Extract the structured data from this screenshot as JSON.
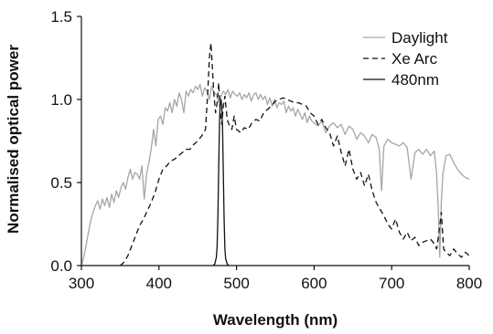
{
  "chart_data": {
    "type": "line",
    "xlabel": "Wavelength (nm)",
    "ylabel": "Normalised optical power",
    "xlim": [
      300,
      800
    ],
    "ylim": [
      0,
      1.5
    ],
    "xticks": [
      "300",
      "400",
      "500",
      "600",
      "700",
      "800"
    ],
    "yticks": [
      "0.0",
      "0.5",
      "1.0",
      "1.5"
    ],
    "grid": false,
    "legend_position": "top-right",
    "series": [
      {
        "name": "Daylight",
        "color": "#a6a6a6",
        "dash": "solid",
        "x": [
          300,
          303,
          306,
          309,
          312,
          315,
          318,
          321,
          324,
          327,
          330,
          333,
          336,
          339,
          342,
          345,
          348,
          351,
          354,
          357,
          360,
          363,
          366,
          369,
          372,
          375,
          378,
          381,
          384,
          387,
          390,
          393,
          396,
          399,
          402,
          405,
          408,
          411,
          414,
          417,
          420,
          423,
          426,
          429,
          432,
          435,
          438,
          441,
          444,
          447,
          450,
          453,
          456,
          459,
          462,
          465,
          468,
          471,
          474,
          477,
          480,
          483,
          486,
          489,
          492,
          495,
          498,
          501,
          504,
          507,
          510,
          513,
          516,
          519,
          522,
          525,
          528,
          531,
          534,
          537,
          540,
          543,
          546,
          549,
          552,
          555,
          558,
          561,
          564,
          567,
          570,
          573,
          576,
          579,
          582,
          585,
          588,
          591,
          594,
          597,
          600,
          605,
          610,
          615,
          620,
          625,
          630,
          635,
          640,
          645,
          650,
          655,
          660,
          665,
          670,
          675,
          680,
          684,
          687,
          690,
          695,
          700,
          705,
          710,
          715,
          720,
          725,
          730,
          735,
          740,
          745,
          750,
          755,
          758,
          760,
          762,
          764,
          766,
          770,
          775,
          780,
          785,
          790,
          795,
          800
        ],
        "values": [
          0.0,
          0.05,
          0.12,
          0.2,
          0.27,
          0.32,
          0.36,
          0.39,
          0.34,
          0.4,
          0.36,
          0.41,
          0.35,
          0.43,
          0.38,
          0.45,
          0.41,
          0.47,
          0.5,
          0.46,
          0.53,
          0.58,
          0.52,
          0.56,
          0.55,
          0.52,
          0.6,
          0.4,
          0.55,
          0.62,
          0.7,
          0.82,
          0.72,
          0.88,
          0.9,
          0.85,
          0.95,
          0.93,
          0.98,
          0.92,
          1.0,
          0.96,
          1.04,
          1.0,
          0.92,
          1.05,
          1.02,
          1.06,
          1.04,
          1.08,
          1.06,
          1.09,
          1.02,
          1.07,
          1.05,
          1.0,
          1.08,
          1.04,
          1.03,
          0.98,
          1.02,
          1.05,
          1.03,
          1.06,
          1.01,
          1.05,
          1.03,
          1.02,
          1.04,
          1.0,
          1.03,
          1.01,
          1.04,
          0.99,
          1.03,
          1.04,
          1.0,
          1.03,
          1.0,
          1.02,
          0.97,
          1.01,
          0.96,
          1.0,
          0.95,
          0.98,
          0.97,
          0.99,
          0.92,
          0.96,
          0.93,
          0.95,
          0.9,
          0.94,
          0.91,
          0.88,
          0.92,
          0.86,
          0.9,
          0.87,
          0.86,
          0.84,
          0.87,
          0.8,
          0.84,
          0.86,
          0.83,
          0.85,
          0.79,
          0.84,
          0.82,
          0.76,
          0.8,
          0.78,
          0.74,
          0.79,
          0.77,
          0.7,
          0.45,
          0.72,
          0.76,
          0.74,
          0.73,
          0.72,
          0.74,
          0.71,
          0.52,
          0.68,
          0.7,
          0.67,
          0.7,
          0.66,
          0.69,
          0.55,
          0.35,
          0.05,
          0.38,
          0.55,
          0.66,
          0.67,
          0.62,
          0.58,
          0.55,
          0.53,
          0.52
        ]
      },
      {
        "name": "Xe Arc",
        "color": "#111111",
        "dash": "dashed",
        "x": [
          350,
          355,
          360,
          365,
          370,
          375,
          380,
          385,
          390,
          395,
          400,
          405,
          410,
          415,
          420,
          425,
          430,
          435,
          440,
          445,
          450,
          455,
          460,
          463,
          465,
          467,
          469,
          471,
          473,
          475,
          477,
          479,
          481,
          483,
          485,
          488,
          491,
          494,
          497,
          500,
          505,
          510,
          515,
          520,
          525,
          530,
          535,
          540,
          545,
          550,
          555,
          560,
          565,
          570,
          575,
          580,
          585,
          590,
          595,
          600,
          605,
          610,
          615,
          620,
          625,
          630,
          635,
          640,
          645,
          650,
          655,
          660,
          665,
          670,
          675,
          680,
          685,
          690,
          695,
          700,
          705,
          710,
          715,
          720,
          725,
          730,
          735,
          740,
          745,
          750,
          755,
          758,
          761,
          764,
          767,
          770,
          775,
          780,
          785,
          790,
          795,
          800
        ],
        "values": [
          0.0,
          0.02,
          0.06,
          0.12,
          0.18,
          0.24,
          0.28,
          0.33,
          0.38,
          0.44,
          0.52,
          0.58,
          0.6,
          0.63,
          0.64,
          0.66,
          0.68,
          0.7,
          0.7,
          0.73,
          0.75,
          0.78,
          0.82,
          1.05,
          1.25,
          1.34,
          1.18,
          1.02,
          0.92,
          0.98,
          1.1,
          0.92,
          0.85,
          0.96,
          1.02,
          0.88,
          0.84,
          0.82,
          0.9,
          0.82,
          0.8,
          0.83,
          0.82,
          0.86,
          0.88,
          0.87,
          0.92,
          0.94,
          0.96,
          0.99,
          1.0,
          1.01,
          1.0,
          0.99,
          0.98,
          0.98,
          0.97,
          0.96,
          0.92,
          0.9,
          0.85,
          0.88,
          0.83,
          0.8,
          0.72,
          0.78,
          0.68,
          0.6,
          0.7,
          0.58,
          0.52,
          0.56,
          0.48,
          0.55,
          0.45,
          0.38,
          0.34,
          0.3,
          0.25,
          0.22,
          0.28,
          0.2,
          0.16,
          0.2,
          0.15,
          0.17,
          0.12,
          0.14,
          0.15,
          0.16,
          0.13,
          0.1,
          0.2,
          0.32,
          0.1,
          0.08,
          0.06,
          0.1,
          0.07,
          0.05,
          0.08,
          0.06
        ]
      },
      {
        "name": "480nm",
        "color": "#111111",
        "dash": "solid",
        "x": [
          470,
          472,
          474,
          475,
          476,
          477,
          478,
          479,
          480,
          481,
          482,
          483,
          484,
          485,
          486,
          488,
          490
        ],
        "values": [
          0.0,
          0.01,
          0.05,
          0.12,
          0.3,
          0.58,
          0.85,
          0.98,
          1.0,
          0.96,
          0.82,
          0.55,
          0.28,
          0.1,
          0.04,
          0.01,
          0.0
        ]
      }
    ]
  }
}
